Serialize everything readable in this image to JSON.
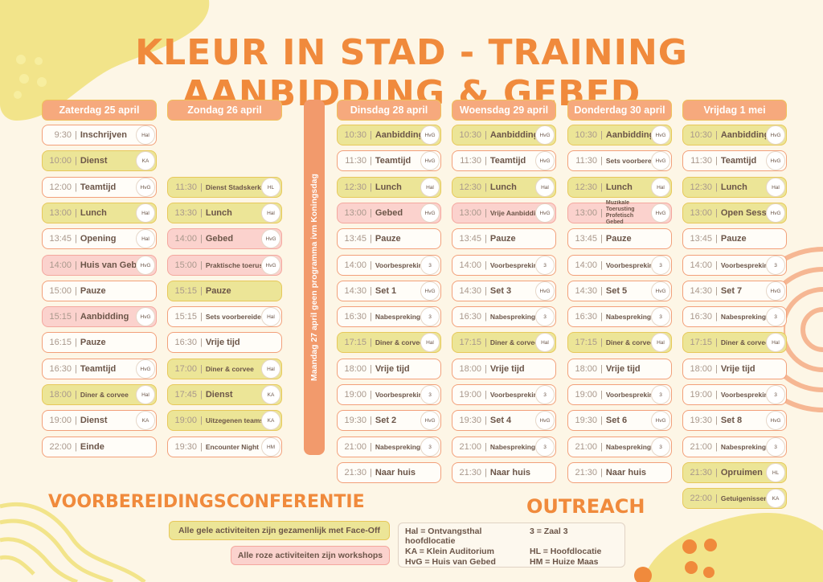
{
  "title": "KLEUR IN STAD - TRAINING AANBIDDING & GEBED",
  "vertical_note": "Maandag 27 april geen programma ivm Koningsdag",
  "conference_title": "VOORBEREIDINGSCONFERENTIE",
  "conference_notes": {
    "yellow": "Alle gele activiteiten zijn gezamenlijk met Face-Off",
    "pink": "Alle roze activiteiten zijn workshops"
  },
  "outreach_title": "OUTREACH",
  "legend": [
    "Hal = Ontvangsthal hoofdlocatie",
    "3 = Zaal 3",
    "KA = Klein Auditorium",
    "HL = Hoofdlocatie",
    "HvG = Huis van Gebed",
    "HM = Huize Maas"
  ],
  "colors": {
    "accent": "#f08a3c",
    "white_border": "#f2a07a",
    "yellow": "#ece597",
    "pink": "#fbd2cd",
    "header": "#f6a97d"
  },
  "days": [
    {
      "label": "Zaterdag 25 april",
      "start_slot": 0,
      "events": [
        {
          "time": "9:30",
          "name": "Inschrijven",
          "loc": "Hal",
          "color": "white"
        },
        {
          "time": "10:00",
          "name": "Dienst",
          "loc": "KA",
          "color": "yellow"
        },
        {
          "time": "12:00",
          "name": "Teamtijd",
          "loc": "HvG",
          "color": "white"
        },
        {
          "time": "13:00",
          "name": "Lunch",
          "loc": "Hal",
          "color": "yellow"
        },
        {
          "time": "13:45",
          "name": "Opening",
          "loc": "Hal",
          "color": "white"
        },
        {
          "time": "14:00",
          "name": "Huis van Gebed",
          "loc": "HvG",
          "color": "pink"
        },
        {
          "time": "15:00",
          "name": "Pauze",
          "loc": "",
          "color": "white"
        },
        {
          "time": "15:15",
          "name": "Aanbidding",
          "loc": "HvG",
          "color": "pink"
        },
        {
          "time": "16:15",
          "name": "Pauze",
          "loc": "",
          "color": "white"
        },
        {
          "time": "16:30",
          "name": "Teamtijd",
          "loc": "HvG",
          "color": "white"
        },
        {
          "time": "18:00",
          "name": "Diner & corvee",
          "loc": "Hal",
          "color": "yellow",
          "size": "sm"
        },
        {
          "time": "19:00",
          "name": "Dienst",
          "loc": "KA",
          "color": "white"
        },
        {
          "time": "22:00",
          "name": "Einde",
          "loc": "",
          "color": "white"
        }
      ]
    },
    {
      "label": "Zondag 26 april",
      "start_slot": 2,
      "events": [
        {
          "time": "11:30",
          "name": "Dienst Stadskerk",
          "loc": "HL",
          "color": "yellow",
          "size": "sm"
        },
        {
          "time": "13:30",
          "name": "Lunch",
          "loc": "Hal",
          "color": "yellow"
        },
        {
          "time": "14:00",
          "name": "Gebed",
          "loc": "HvG",
          "color": "pink"
        },
        {
          "time": "15:00",
          "name": "Praktische toerusting",
          "loc": "HvG",
          "color": "pink",
          "size": "sm"
        },
        {
          "time": "15:15",
          "name": "Pauze",
          "loc": "",
          "color": "yellow"
        },
        {
          "time": "15:15",
          "name": "Sets voorbereiden",
          "loc": "Hal",
          "color": "white",
          "size": "sm"
        },
        {
          "time": "16:30",
          "name": "Vrije tijd",
          "loc": "",
          "color": "white"
        },
        {
          "time": "17:00",
          "name": "Diner & corvee",
          "loc": "Hal",
          "color": "yellow",
          "size": "sm"
        },
        {
          "time": "17:45",
          "name": "Dienst",
          "loc": "KA",
          "color": "yellow"
        },
        {
          "time": "19:00",
          "name": "Uitzegenen teams",
          "loc": "KA",
          "color": "yellow",
          "size": "sm"
        },
        {
          "time": "19:30",
          "name": "Encounter Night",
          "loc": "HM",
          "color": "white",
          "size": "sm"
        }
      ]
    },
    {
      "label": "Dinsdag 28 april",
      "start_slot": 0,
      "events": [
        {
          "time": "10:30",
          "name": "Aanbidding",
          "loc": "HvG",
          "color": "yellow"
        },
        {
          "time": "11:30",
          "name": "Teamtijd",
          "loc": "HvG",
          "color": "white"
        },
        {
          "time": "12:30",
          "name": "Lunch",
          "loc": "Hal",
          "color": "yellow"
        },
        {
          "time": "13:00",
          "name": "Gebed",
          "loc": "HvG",
          "color": "pink"
        },
        {
          "time": "13:45",
          "name": "Pauze",
          "loc": "",
          "color": "white"
        },
        {
          "time": "14:00",
          "name": "Voorbespreking",
          "loc": "3",
          "color": "white",
          "size": "sm"
        },
        {
          "time": "14:30",
          "name": "Set 1",
          "loc": "HvG",
          "color": "white"
        },
        {
          "time": "16:30",
          "name": "Nabespreking",
          "loc": "3",
          "color": "white",
          "size": "sm"
        },
        {
          "time": "17:15",
          "name": "Diner & corvee",
          "loc": "Hal",
          "color": "yellow",
          "size": "sm"
        },
        {
          "time": "18:00",
          "name": "Vrije tijd",
          "loc": "",
          "color": "white"
        },
        {
          "time": "19:00",
          "name": "Voorbespreking",
          "loc": "3",
          "color": "white",
          "size": "sm"
        },
        {
          "time": "19:30",
          "name": "Set 2",
          "loc": "HvG",
          "color": "white"
        },
        {
          "time": "21:00",
          "name": "Nabespreking",
          "loc": "3",
          "color": "white",
          "size": "sm"
        },
        {
          "time": "21:30",
          "name": "Naar huis",
          "loc": "",
          "color": "white"
        }
      ]
    },
    {
      "label": "Woensdag 29 april",
      "start_slot": 0,
      "events": [
        {
          "time": "10:30",
          "name": "Aanbidding",
          "loc": "HvG",
          "color": "yellow"
        },
        {
          "time": "11:30",
          "name": "Teamtijd",
          "loc": "HvG",
          "color": "white"
        },
        {
          "time": "12:30",
          "name": "Lunch",
          "loc": "Hal",
          "color": "yellow"
        },
        {
          "time": "13:00",
          "name": "Vrije Aanbidding",
          "loc": "HvG",
          "color": "pink",
          "size": "sm"
        },
        {
          "time": "13:45",
          "name": "Pauze",
          "loc": "",
          "color": "white"
        },
        {
          "time": "14:00",
          "name": "Voorbespreking",
          "loc": "3",
          "color": "white",
          "size": "sm"
        },
        {
          "time": "14:30",
          "name": "Set 3",
          "loc": "HvG",
          "color": "white"
        },
        {
          "time": "16:30",
          "name": "Nabespreking",
          "loc": "3",
          "color": "white",
          "size": "sm"
        },
        {
          "time": "17:15",
          "name": "Diner & corvee",
          "loc": "Hal",
          "color": "yellow",
          "size": "sm"
        },
        {
          "time": "18:00",
          "name": "Vrije tijd",
          "loc": "",
          "color": "white"
        },
        {
          "time": "19:00",
          "name": "Voorbespreking",
          "loc": "3",
          "color": "white",
          "size": "sm"
        },
        {
          "time": "19:30",
          "name": "Set 4",
          "loc": "HvG",
          "color": "white"
        },
        {
          "time": "21:00",
          "name": "Nabespreking",
          "loc": "3",
          "color": "white",
          "size": "sm"
        },
        {
          "time": "21:30",
          "name": "Naar huis",
          "loc": "",
          "color": "white"
        }
      ]
    },
    {
      "label": "Donderdag 30 april",
      "start_slot": 0,
      "events": [
        {
          "time": "10:30",
          "name": "Aanbidding",
          "loc": "HvG",
          "color": "yellow"
        },
        {
          "time": "11:30",
          "name": "Sets voorbereiden",
          "loc": "HvG",
          "color": "white",
          "size": "sm"
        },
        {
          "time": "12:30",
          "name": "Lunch",
          "loc": "Hal",
          "color": "yellow"
        },
        {
          "time": "13:00",
          "name": "Muzikale Toerusting Profetisch Gebed",
          "loc": "HvG",
          "color": "pink",
          "size": "xs"
        },
        {
          "time": "13:45",
          "name": "Pauze",
          "loc": "",
          "color": "white"
        },
        {
          "time": "14:00",
          "name": "Voorbespreking",
          "loc": "3",
          "color": "white",
          "size": "sm"
        },
        {
          "time": "14:30",
          "name": "Set 5",
          "loc": "HvG",
          "color": "white"
        },
        {
          "time": "16:30",
          "name": "Nabespreking",
          "loc": "3",
          "color": "white",
          "size": "sm"
        },
        {
          "time": "17:15",
          "name": "Diner & corvee",
          "loc": "Hal",
          "color": "yellow",
          "size": "sm"
        },
        {
          "time": "18:00",
          "name": "Vrije tijd",
          "loc": "",
          "color": "white"
        },
        {
          "time": "19:00",
          "name": "Voorbespreking",
          "loc": "3",
          "color": "white",
          "size": "sm"
        },
        {
          "time": "19:30",
          "name": "Set 6",
          "loc": "HvG",
          "color": "white"
        },
        {
          "time": "21:00",
          "name": "Nabespreking",
          "loc": "3",
          "color": "white",
          "size": "sm"
        },
        {
          "time": "21:30",
          "name": "Naar huis",
          "loc": "",
          "color": "white"
        }
      ]
    },
    {
      "label": "Vrijdag 1 mei",
      "start_slot": 0,
      "events": [
        {
          "time": "10:30",
          "name": "Aanbidding",
          "loc": "HvG",
          "color": "yellow"
        },
        {
          "time": "11:30",
          "name": "Teamtijd",
          "loc": "HvG",
          "color": "white"
        },
        {
          "time": "12:30",
          "name": "Lunch",
          "loc": "Hal",
          "color": "yellow"
        },
        {
          "time": "13:00",
          "name": "Open Sessie",
          "loc": "HvG",
          "color": "yellow"
        },
        {
          "time": "13:45",
          "name": "Pauze",
          "loc": "",
          "color": "white"
        },
        {
          "time": "14:00",
          "name": "Voorbespreking",
          "loc": "3",
          "color": "white",
          "size": "sm"
        },
        {
          "time": "14:30",
          "name": "Set 7",
          "loc": "HvG",
          "color": "white"
        },
        {
          "time": "16:30",
          "name": "Nabespreking",
          "loc": "3",
          "color": "white",
          "size": "sm"
        },
        {
          "time": "17:15",
          "name": "Diner & corvee",
          "loc": "Hal",
          "color": "yellow",
          "size": "sm"
        },
        {
          "time": "18:00",
          "name": "Vrije tijd",
          "loc": "",
          "color": "white"
        },
        {
          "time": "19:00",
          "name": "Voorbespreking",
          "loc": "3",
          "color": "white",
          "size": "sm"
        },
        {
          "time": "19:30",
          "name": "Set 8",
          "loc": "HvG",
          "color": "white"
        },
        {
          "time": "21:00",
          "name": "Nabespreking",
          "loc": "3",
          "color": "white",
          "size": "sm"
        },
        {
          "time": "21:30",
          "name": "Opruimen",
          "loc": "HL",
          "color": "yellow"
        },
        {
          "time": "22:00",
          "name": "Getuigenissen",
          "loc": "KA",
          "color": "yellow",
          "size": "sm"
        }
      ]
    }
  ]
}
